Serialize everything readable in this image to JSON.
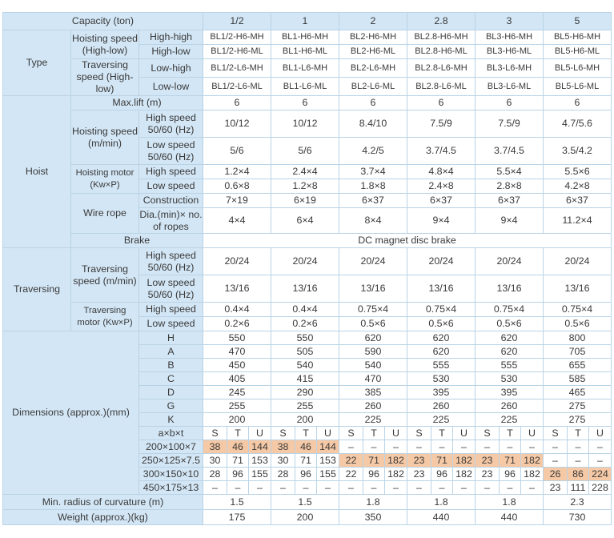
{
  "header": {
    "capacity_label": "Capacity (ton)",
    "capacities": [
      "1/2",
      "1",
      "2",
      "2.8",
      "3",
      "5"
    ]
  },
  "type": {
    "label": "Type",
    "hoisting_speed_label": "Hoisting speed (High-low)",
    "traversing_speed_label": "Traversing speed (High-low)",
    "rows": [
      {
        "label": "High-high",
        "models": [
          "BL1/2-H6-MH",
          "BL1-H6-MH",
          "BL2-H6-MH",
          "BL2.8-H6-MH",
          "BL3-H6-MH",
          "BL5-H6-MH"
        ]
      },
      {
        "label": "High-low",
        "models": [
          "BL1/2-H6-ML",
          "BL1-H6-ML",
          "BL2-H6-ML",
          "BL2.8-H6-ML",
          "BL3-H6-ML",
          "BL5-H6-ML"
        ]
      },
      {
        "label": "Low-high",
        "models": [
          "BL1/2-L6-MH",
          "BL1-L6-MH",
          "BL2-L6-MH",
          "BL2.8-L6-MH",
          "BL3-L6-MH",
          "BL5-L6-MH"
        ]
      },
      {
        "label": "Low-low",
        "models": [
          "BL1/2-L6-ML",
          "BL1-L6-ML",
          "BL2-L6-ML",
          "BL2.8-L6-ML",
          "BL3-L6-ML",
          "BL5-L6-ML"
        ]
      }
    ]
  },
  "hoist": {
    "label": "Hoist",
    "max_lift_label": "Max.lift (m)",
    "max_lift": [
      "6",
      "6",
      "6",
      "6",
      "6",
      "6"
    ],
    "hoisting_speed_label": "Hoisting speed (m/min)",
    "high_speed_label": "High speed 50/60 (Hz)",
    "high_speed": [
      "10/12",
      "10/12",
      "8.4/10",
      "7.5/9",
      "7.5/9",
      "4.7/5.6"
    ],
    "low_speed_label": "Low speed 50/60 (Hz)",
    "low_speed": [
      "5/6",
      "5/6",
      "4.2/5",
      "3.7/4.5",
      "3.7/4.5",
      "3.5/4.2"
    ],
    "motor_label": "Hoisting motor (Kw×P)",
    "motor_high_label": "High speed",
    "motor_high": [
      "1.2×4",
      "2.4×4",
      "3.7×4",
      "4.8×4",
      "5.5×4",
      "5.5×6"
    ],
    "motor_low_label": "Low speed",
    "motor_low": [
      "0.6×8",
      "1.2×8",
      "1.8×8",
      "2.4×8",
      "2.8×8",
      "4.2×8"
    ],
    "wire_rope_label": "Wire rope",
    "construction_label": "Construction",
    "construction": [
      "7×19",
      "6×19",
      "6×37",
      "6×37",
      "6×37",
      "6×37"
    ],
    "dia_label": "Dia.(min)× no. of ropes",
    "dia": [
      "4×4",
      "6×4",
      "8×4",
      "9×4",
      "9×4",
      "11.2×4"
    ]
  },
  "brake": {
    "label": "Brake",
    "value": "DC magnet disc brake"
  },
  "traversing": {
    "label": "Traversing",
    "speed_label": "Traversing speed (m/min)",
    "high_speed_label": "High speed 50/60 (Hz)",
    "high_speed": [
      "20/24",
      "20/24",
      "20/24",
      "20/24",
      "20/24",
      "20/24"
    ],
    "low_speed_label": "Low speed 50/60 (Hz)",
    "low_speed": [
      "13/16",
      "13/16",
      "13/16",
      "13/16",
      "13/16",
      "13/16"
    ],
    "motor_label": "Traversing motor (Kw×P)",
    "motor_high_label": "High speed",
    "motor_high": [
      "0.4×4",
      "0.4×4",
      "0.75×4",
      "0.75×4",
      "0.75×4",
      "0.75×4"
    ],
    "motor_low_label": "Low speed",
    "motor_low": [
      "0.2×6",
      "0.2×6",
      "0.5×6",
      "0.5×6",
      "0.5×6",
      "0.5×6"
    ]
  },
  "dimensions": {
    "label": "Dimensions (approx.)(mm)",
    "rows": [
      {
        "label": "H",
        "values": [
          "550",
          "550",
          "620",
          "620",
          "620",
          "800"
        ]
      },
      {
        "label": "A",
        "values": [
          "470",
          "505",
          "590",
          "620",
          "620",
          "705"
        ]
      },
      {
        "label": "B",
        "values": [
          "450",
          "540",
          "540",
          "555",
          "555",
          "655"
        ]
      },
      {
        "label": "C",
        "values": [
          "405",
          "415",
          "470",
          "530",
          "530",
          "585"
        ]
      },
      {
        "label": "D",
        "values": [
          "245",
          "290",
          "385",
          "395",
          "395",
          "465"
        ]
      },
      {
        "label": "G",
        "values": [
          "255",
          "255",
          "260",
          "260",
          "260",
          "275"
        ]
      },
      {
        "label": "K",
        "values": [
          "200",
          "200",
          "225",
          "225",
          "225",
          "275"
        ]
      }
    ],
    "axbxt_label": "a×b×t",
    "stu": [
      "S",
      "T",
      "U"
    ],
    "beams": [
      {
        "label": "200×100×7",
        "values": [
          "38",
          "46",
          "144",
          "38",
          "46",
          "144",
          "–",
          "–",
          "–",
          "–",
          "–",
          "–",
          "–",
          "–",
          "–",
          "–",
          "–",
          "–"
        ]
      },
      {
        "label": "250×125×7.5",
        "values": [
          "30",
          "71",
          "153",
          "30",
          "71",
          "153",
          "22",
          "71",
          "182",
          "23",
          "71",
          "182",
          "23",
          "71",
          "182",
          "–",
          "–",
          "–"
        ]
      },
      {
        "label": "300×150×10",
        "values": [
          "28",
          "96",
          "155",
          "28",
          "96",
          "155",
          "22",
          "96",
          "182",
          "23",
          "96",
          "182",
          "23",
          "96",
          "182",
          "26",
          "86",
          "224"
        ]
      },
      {
        "label": "450×175×13",
        "values": [
          "–",
          "–",
          "–",
          "–",
          "–",
          "–",
          "–",
          "–",
          "–",
          "–",
          "–",
          "–",
          "–",
          "–",
          "–",
          "23",
          "111",
          "228"
        ]
      }
    ]
  },
  "min_radius": {
    "label": "Min. radius of curvature (m)",
    "values": [
      "1.5",
      "1.5",
      "1.8",
      "1.8",
      "1.8",
      "2.3"
    ]
  },
  "weight": {
    "label": "Weight (approx.)(kg)",
    "values": [
      "175",
      "200",
      "350",
      "440",
      "440",
      "730"
    ]
  }
}
